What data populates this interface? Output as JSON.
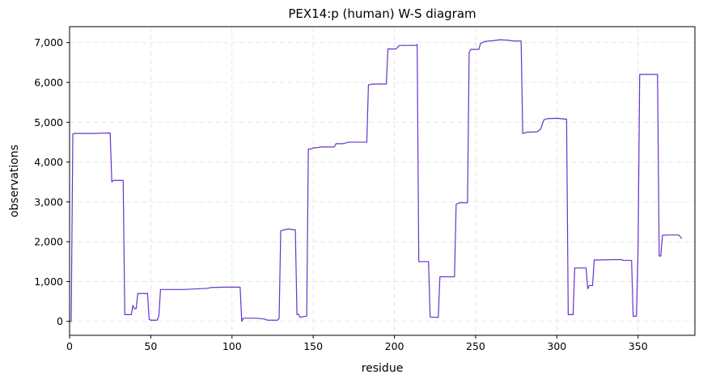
{
  "chart_data": {
    "type": "line",
    "title": "PEX14:p (human) W-S diagram",
    "xlabel": "residue",
    "ylabel": "observations",
    "xlim": [
      0,
      385
    ],
    "ylim": [
      -350,
      7400
    ],
    "grid": true,
    "line_color": "#6633cc",
    "xticks": [
      0,
      50,
      100,
      150,
      200,
      250,
      300,
      350
    ],
    "yticks": [
      0,
      1000,
      2000,
      3000,
      4000,
      5000,
      6000,
      7000
    ],
    "ytick_labels": [
      "0",
      "1,000",
      "2,000",
      "3,000",
      "4,000",
      "5,000",
      "6,000",
      "7,000"
    ],
    "series": [
      {
        "values": [
          [
            0,
            0
          ],
          [
            1,
            0
          ],
          [
            2,
            4700
          ],
          [
            3,
            4720
          ],
          [
            15,
            4720
          ],
          [
            25,
            4730
          ],
          [
            26,
            3500
          ],
          [
            27,
            3540
          ],
          [
            33,
            3540
          ],
          [
            34,
            170
          ],
          [
            38,
            170
          ],
          [
            39,
            400
          ],
          [
            40,
            320
          ],
          [
            41,
            320
          ],
          [
            42,
            700
          ],
          [
            48,
            700
          ],
          [
            49,
            50
          ],
          [
            50,
            30
          ],
          [
            54,
            30
          ],
          [
            55,
            150
          ],
          [
            56,
            800
          ],
          [
            70,
            800
          ],
          [
            80,
            820
          ],
          [
            85,
            830
          ],
          [
            87,
            850
          ],
          [
            95,
            860
          ],
          [
            105,
            860
          ],
          [
            106,
            0
          ],
          [
            107,
            80
          ],
          [
            115,
            80
          ],
          [
            120,
            60
          ],
          [
            122,
            30
          ],
          [
            128,
            30
          ],
          [
            129,
            70
          ],
          [
            130,
            2270
          ],
          [
            132,
            2300
          ],
          [
            135,
            2320
          ],
          [
            138,
            2300
          ],
          [
            139,
            2300
          ],
          [
            140,
            170
          ],
          [
            141,
            180
          ],
          [
            142,
            100
          ],
          [
            144,
            120
          ],
          [
            146,
            130
          ],
          [
            147,
            4330
          ],
          [
            149,
            4330
          ],
          [
            150,
            4360
          ],
          [
            152,
            4360
          ],
          [
            155,
            4380
          ],
          [
            163,
            4380
          ],
          [
            164,
            4460
          ],
          [
            168,
            4460
          ],
          [
            172,
            4500
          ],
          [
            176,
            4500
          ],
          [
            183,
            4500
          ],
          [
            184,
            5940
          ],
          [
            187,
            5960
          ],
          [
            195,
            5960
          ],
          [
            196,
            6840
          ],
          [
            201,
            6840
          ],
          [
            203,
            6930
          ],
          [
            213,
            6930
          ],
          [
            214,
            6950
          ],
          [
            215,
            1500
          ],
          [
            221,
            1500
          ],
          [
            222,
            110
          ],
          [
            227,
            100
          ],
          [
            228,
            1120
          ],
          [
            237,
            1120
          ],
          [
            238,
            2940
          ],
          [
            240,
            2980
          ],
          [
            245,
            2980
          ],
          [
            246,
            6750
          ],
          [
            247,
            6830
          ],
          [
            252,
            6830
          ],
          [
            253,
            6980
          ],
          [
            256,
            7030
          ],
          [
            261,
            7050
          ],
          [
            265,
            7070
          ],
          [
            270,
            7060
          ],
          [
            273,
            7040
          ],
          [
            278,
            7040
          ],
          [
            279,
            4720
          ],
          [
            282,
            4750
          ],
          [
            288,
            4760
          ],
          [
            290,
            4830
          ],
          [
            292,
            5060
          ],
          [
            294,
            5090
          ],
          [
            300,
            5100
          ],
          [
            305,
            5080
          ],
          [
            306,
            5080
          ],
          [
            307,
            170
          ],
          [
            310,
            170
          ],
          [
            311,
            1340
          ],
          [
            318,
            1340
          ],
          [
            319,
            820
          ],
          [
            320,
            900
          ],
          [
            322,
            900
          ],
          [
            323,
            1540
          ],
          [
            335,
            1550
          ],
          [
            340,
            1550
          ],
          [
            341,
            1530
          ],
          [
            346,
            1530
          ],
          [
            347,
            130
          ],
          [
            349,
            130
          ],
          [
            350,
            1800
          ],
          [
            351,
            6200
          ],
          [
            362,
            6200
          ],
          [
            363,
            1640
          ],
          [
            364,
            1640
          ],
          [
            365,
            2160
          ],
          [
            368,
            2170
          ],
          [
            375,
            2170
          ],
          [
            377,
            2080
          ]
        ]
      }
    ]
  }
}
